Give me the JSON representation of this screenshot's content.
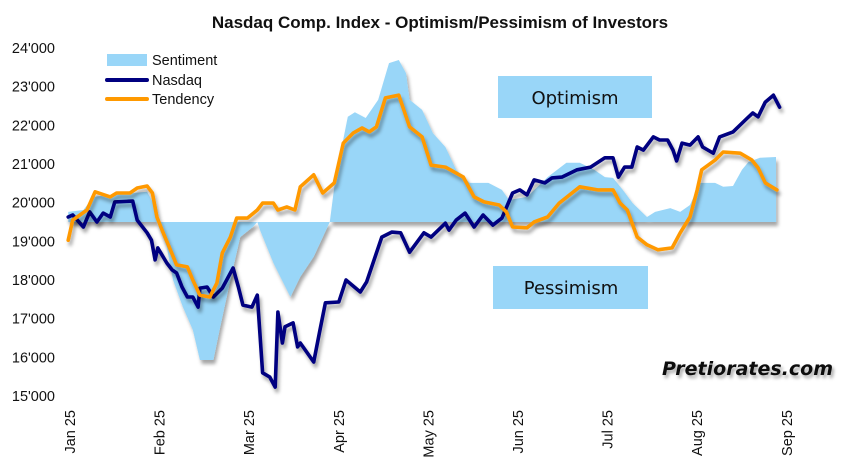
{
  "chart_data": {
    "type": "line",
    "title": "Nasdaq Comp. Index - Optimism/Pessimism of Investors",
    "xlabel": "",
    "ylabel": "",
    "x_unit": "months since start of Jan 2025",
    "xlim": [
      0,
      8
    ],
    "ylim": [
      15000,
      24000
    ],
    "y_ticks": [
      15000,
      16000,
      17000,
      18000,
      19000,
      20000,
      21000,
      22000,
      23000,
      24000
    ],
    "y_tick_labels": [
      "15'000",
      "16'000",
      "17'000",
      "18'000",
      "19'000",
      "20'000",
      "21'000",
      "22'000",
      "23'000",
      "24'000"
    ],
    "x_tick_labels": [
      "Jan 25",
      "Feb 25",
      "Mar 25",
      "Apr 25",
      "May 25",
      "Jun 25",
      "Jul 25",
      "Aug 25",
      "Sep 25"
    ],
    "grid": false,
    "legend_position": "top-left",
    "sentiment_baseline": 19500,
    "annotations": {
      "optimism": "Optimism",
      "pessimism": "Pessimism",
      "watermark": "Pretiorates.com"
    },
    "series": [
      {
        "name": "Sentiment",
        "type": "area",
        "color": "#99d6f8",
        "points": [
          [
            -0.02,
            19760
          ],
          [
            0.15,
            19810
          ],
          [
            0.26,
            20150
          ],
          [
            0.45,
            20200
          ],
          [
            0.7,
            20250
          ],
          [
            0.86,
            20280
          ],
          [
            0.93,
            19990
          ],
          [
            0.97,
            19500
          ],
          [
            1.08,
            18850
          ],
          [
            1.15,
            18000
          ],
          [
            1.26,
            17300
          ],
          [
            1.37,
            16710
          ],
          [
            1.45,
            15930
          ],
          [
            1.6,
            15930
          ],
          [
            1.67,
            16710
          ],
          [
            1.79,
            18000
          ],
          [
            1.9,
            19110
          ],
          [
            2.04,
            19370
          ],
          [
            2.09,
            19500
          ],
          [
            2.12,
            19290
          ],
          [
            2.27,
            18440
          ],
          [
            2.46,
            17560
          ],
          [
            2.57,
            18080
          ],
          [
            2.72,
            18600
          ],
          [
            2.9,
            19500
          ],
          [
            2.96,
            20590
          ],
          [
            3.1,
            22220
          ],
          [
            3.18,
            22340
          ],
          [
            3.3,
            22190
          ],
          [
            3.44,
            22660
          ],
          [
            3.56,
            23610
          ],
          [
            3.67,
            23690
          ],
          [
            3.75,
            23350
          ],
          [
            3.79,
            22660
          ],
          [
            3.93,
            22400
          ],
          [
            4.05,
            21800
          ],
          [
            4.19,
            21440
          ],
          [
            4.31,
            20850
          ],
          [
            4.46,
            20510
          ],
          [
            4.67,
            20510
          ],
          [
            4.82,
            20330
          ],
          [
            4.9,
            20070
          ],
          [
            5.1,
            20150
          ],
          [
            5.33,
            20660
          ],
          [
            5.54,
            21030
          ],
          [
            5.69,
            21030
          ],
          [
            5.85,
            20850
          ],
          [
            5.97,
            20660
          ],
          [
            6.06,
            20640
          ],
          [
            6.17,
            20330
          ],
          [
            6.28,
            19990
          ],
          [
            6.44,
            19630
          ],
          [
            6.53,
            19760
          ],
          [
            6.7,
            19860
          ],
          [
            6.81,
            19760
          ],
          [
            6.92,
            19940
          ],
          [
            7.03,
            20510
          ],
          [
            7.2,
            20510
          ],
          [
            7.29,
            20410
          ],
          [
            7.4,
            20430
          ],
          [
            7.5,
            20850
          ],
          [
            7.57,
            21050
          ],
          [
            7.7,
            21160
          ],
          [
            7.88,
            21180
          ]
        ]
      },
      {
        "name": "Nasdaq",
        "type": "line",
        "color": "#000080",
        "points": [
          [
            -0.02,
            19630
          ],
          [
            0.03,
            19680
          ],
          [
            0.15,
            19370
          ],
          [
            0.22,
            19760
          ],
          [
            0.3,
            19500
          ],
          [
            0.37,
            19730
          ],
          [
            0.45,
            19630
          ],
          [
            0.5,
            20020
          ],
          [
            0.7,
            20040
          ],
          [
            0.75,
            19550
          ],
          [
            0.86,
            19220
          ],
          [
            0.91,
            19030
          ],
          [
            0.95,
            18520
          ],
          [
            0.98,
            18830
          ],
          [
            1.08,
            18440
          ],
          [
            1.14,
            18260
          ],
          [
            1.19,
            18180
          ],
          [
            1.25,
            17820
          ],
          [
            1.31,
            17560
          ],
          [
            1.37,
            17560
          ],
          [
            1.43,
            17300
          ],
          [
            1.45,
            17790
          ],
          [
            1.53,
            17820
          ],
          [
            1.6,
            17560
          ],
          [
            1.7,
            17790
          ],
          [
            1.82,
            18310
          ],
          [
            1.88,
            17820
          ],
          [
            1.93,
            17350
          ],
          [
            2.03,
            17300
          ],
          [
            2.09,
            17610
          ],
          [
            2.15,
            15600
          ],
          [
            2.23,
            15490
          ],
          [
            2.29,
            15230
          ],
          [
            2.32,
            17170
          ],
          [
            2.37,
            16370
          ],
          [
            2.4,
            16790
          ],
          [
            2.49,
            16890
          ],
          [
            2.54,
            16270
          ],
          [
            2.57,
            16370
          ],
          [
            2.72,
            15880
          ],
          [
            2.79,
            16710
          ],
          [
            2.85,
            17410
          ],
          [
            3.0,
            17430
          ],
          [
            3.08,
            18000
          ],
          [
            3.24,
            17690
          ],
          [
            3.31,
            17950
          ],
          [
            3.48,
            19110
          ],
          [
            3.59,
            19240
          ],
          [
            3.69,
            19220
          ],
          [
            3.79,
            18720
          ],
          [
            3.95,
            19220
          ],
          [
            4.03,
            19110
          ],
          [
            4.19,
            19470
          ],
          [
            4.23,
            19290
          ],
          [
            4.31,
            19550
          ],
          [
            4.41,
            19730
          ],
          [
            4.51,
            19370
          ],
          [
            4.61,
            19680
          ],
          [
            4.72,
            19420
          ],
          [
            4.82,
            19600
          ],
          [
            4.94,
            20250
          ],
          [
            5.02,
            20330
          ],
          [
            5.1,
            20200
          ],
          [
            5.18,
            20590
          ],
          [
            5.3,
            20510
          ],
          [
            5.38,
            20640
          ],
          [
            5.49,
            20660
          ],
          [
            5.66,
            20850
          ],
          [
            5.81,
            20920
          ],
          [
            5.97,
            21160
          ],
          [
            6.06,
            21160
          ],
          [
            6.12,
            20660
          ],
          [
            6.19,
            20920
          ],
          [
            6.27,
            20920
          ],
          [
            6.33,
            21440
          ],
          [
            6.4,
            21360
          ],
          [
            6.51,
            21700
          ],
          [
            6.58,
            21620
          ],
          [
            6.67,
            21620
          ],
          [
            6.73,
            21360
          ],
          [
            6.77,
            21080
          ],
          [
            6.83,
            21540
          ],
          [
            6.92,
            21490
          ],
          [
            7.01,
            21700
          ],
          [
            7.06,
            21440
          ],
          [
            7.18,
            21280
          ],
          [
            7.25,
            21700
          ],
          [
            7.4,
            21830
          ],
          [
            7.56,
            22190
          ],
          [
            7.62,
            22320
          ],
          [
            7.68,
            22220
          ],
          [
            7.76,
            22600
          ],
          [
            7.85,
            22780
          ],
          [
            7.92,
            22470
          ]
        ]
      },
      {
        "name": "Tendency",
        "type": "line",
        "color": "#ff9900",
        "points": [
          [
            -0.02,
            19030
          ],
          [
            0.03,
            19550
          ],
          [
            0.19,
            19810
          ],
          [
            0.28,
            20280
          ],
          [
            0.45,
            20150
          ],
          [
            0.52,
            20250
          ],
          [
            0.67,
            20250
          ],
          [
            0.75,
            20380
          ],
          [
            0.86,
            20430
          ],
          [
            0.92,
            20250
          ],
          [
            0.97,
            19630
          ],
          [
            1.04,
            19220
          ],
          [
            1.12,
            18780
          ],
          [
            1.19,
            18390
          ],
          [
            1.31,
            18340
          ],
          [
            1.37,
            18000
          ],
          [
            1.45,
            17610
          ],
          [
            1.56,
            17560
          ],
          [
            1.64,
            17920
          ],
          [
            1.7,
            18700
          ],
          [
            1.79,
            19110
          ],
          [
            1.86,
            19600
          ],
          [
            1.98,
            19600
          ],
          [
            2.09,
            19810
          ],
          [
            2.15,
            19990
          ],
          [
            2.27,
            19990
          ],
          [
            2.32,
            19810
          ],
          [
            2.42,
            19890
          ],
          [
            2.51,
            19810
          ],
          [
            2.57,
            20410
          ],
          [
            2.72,
            20720
          ],
          [
            2.82,
            20250
          ],
          [
            2.95,
            20510
          ],
          [
            3.05,
            21540
          ],
          [
            3.16,
            21800
          ],
          [
            3.26,
            21930
          ],
          [
            3.34,
            21830
          ],
          [
            3.42,
            21960
          ],
          [
            3.52,
            22710
          ],
          [
            3.67,
            22780
          ],
          [
            3.79,
            21960
          ],
          [
            3.93,
            21700
          ],
          [
            4.03,
            20970
          ],
          [
            4.19,
            20920
          ],
          [
            4.39,
            20660
          ],
          [
            4.51,
            20150
          ],
          [
            4.62,
            20020
          ],
          [
            4.79,
            19940
          ],
          [
            4.87,
            19760
          ],
          [
            4.94,
            19370
          ],
          [
            5.1,
            19350
          ],
          [
            5.18,
            19500
          ],
          [
            5.33,
            19630
          ],
          [
            5.46,
            19990
          ],
          [
            5.69,
            20410
          ],
          [
            5.89,
            20330
          ],
          [
            6.06,
            20330
          ],
          [
            6.14,
            19990
          ],
          [
            6.22,
            19810
          ],
          [
            6.33,
            19110
          ],
          [
            6.44,
            18910
          ],
          [
            6.56,
            18780
          ],
          [
            6.72,
            18830
          ],
          [
            6.81,
            19220
          ],
          [
            6.92,
            19630
          ],
          [
            7.0,
            20330
          ],
          [
            7.05,
            20850
          ],
          [
            7.2,
            21100
          ],
          [
            7.29,
            21310
          ],
          [
            7.48,
            21280
          ],
          [
            7.61,
            21100
          ],
          [
            7.68,
            20900
          ],
          [
            7.76,
            20510
          ],
          [
            7.89,
            20330
          ]
        ]
      }
    ]
  }
}
